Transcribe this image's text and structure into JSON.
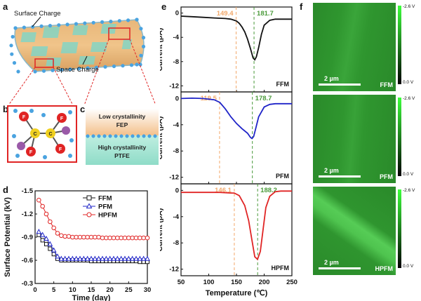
{
  "panel_labels": {
    "a": "a",
    "b": "b",
    "c": "c",
    "d": "d",
    "e": "e",
    "f": "f"
  },
  "panel_a": {
    "surface_label": "Surface Charge",
    "space_label": "Space Charge"
  },
  "panel_b": {
    "f_atom": "F",
    "c_atom": "C"
  },
  "panel_c": {
    "top_line1": "Low crystallinity",
    "top_line2": "FEP",
    "bottom_line1": "High crystallinity",
    "bottom_line2": "PTFE"
  },
  "colors": {
    "ffm": "#111111",
    "pfm": "#1f24c8",
    "hpfm": "#e02424",
    "orange_marker": "#f2a86a",
    "green_marker": "#4a9a3a",
    "afm_green": "#2f8f2f"
  },
  "chart_data": [
    {
      "type": "scatter",
      "panel": "d",
      "xlabel": "Time (day)",
      "ylabel": "Surface Potential (kV)",
      "xlim": [
        0,
        30
      ],
      "ylim": [
        -0.3,
        -1.5
      ],
      "xticks": [
        0,
        5,
        10,
        15,
        20,
        25,
        30
      ],
      "yticks": [
        -1.5,
        -1.2,
        -0.9,
        -0.6,
        -0.3
      ],
      "ytick_labels": [
        "-1.5",
        "-1.2",
        "-0.9",
        "-0.6",
        "-0.3"
      ],
      "legend_position": "top-right",
      "series": [
        {
          "name": "FFM",
          "marker": "square",
          "x": [
            1,
            2,
            3,
            4,
            5,
            6,
            7,
            8,
            9,
            10,
            11,
            12,
            13,
            14,
            15,
            16,
            17,
            18,
            19,
            20,
            21,
            22,
            23,
            24,
            25,
            26,
            27,
            28,
            29,
            30
          ],
          "values": [
            -0.93,
            -0.86,
            -0.81,
            -0.75,
            -0.68,
            -0.62,
            -0.6,
            -0.6,
            -0.6,
            -0.6,
            -0.6,
            -0.6,
            -0.6,
            -0.6,
            -0.59,
            -0.59,
            -0.59,
            -0.59,
            -0.59,
            -0.59,
            -0.59,
            -0.59,
            -0.59,
            -0.59,
            -0.59,
            -0.59,
            -0.59,
            -0.58,
            -0.58,
            -0.58
          ]
        },
        {
          "name": "PFM",
          "marker": "triangle",
          "x": [
            1,
            2,
            3,
            4,
            5,
            6,
            7,
            8,
            9,
            10,
            11,
            12,
            13,
            14,
            15,
            16,
            17,
            18,
            19,
            20,
            21,
            22,
            23,
            24,
            25,
            26,
            27,
            28,
            29,
            30
          ],
          "values": [
            -0.97,
            -0.93,
            -0.88,
            -0.81,
            -0.73,
            -0.65,
            -0.62,
            -0.62,
            -0.62,
            -0.62,
            -0.62,
            -0.62,
            -0.62,
            -0.62,
            -0.62,
            -0.62,
            -0.62,
            -0.62,
            -0.62,
            -0.62,
            -0.62,
            -0.62,
            -0.62,
            -0.62,
            -0.62,
            -0.62,
            -0.62,
            -0.62,
            -0.62,
            -0.62
          ]
        },
        {
          "name": "HPFM",
          "marker": "circle",
          "x": [
            1,
            2,
            3,
            4,
            5,
            6,
            7,
            8,
            9,
            10,
            11,
            12,
            13,
            14,
            15,
            16,
            17,
            18,
            19,
            20,
            21,
            22,
            23,
            24,
            25,
            26,
            27,
            28,
            29,
            30
          ],
          "values": [
            -1.38,
            -1.3,
            -1.2,
            -1.1,
            -1.02,
            -0.95,
            -0.92,
            -0.91,
            -0.91,
            -0.9,
            -0.9,
            -0.9,
            -0.9,
            -0.9,
            -0.9,
            -0.9,
            -0.9,
            -0.89,
            -0.89,
            -0.89,
            -0.89,
            -0.89,
            -0.89,
            -0.89,
            -0.89,
            -0.89,
            -0.89,
            -0.89,
            -0.89,
            -0.89
          ]
        }
      ]
    },
    {
      "type": "line",
      "panel": "e",
      "xlabel": "Temperature (℃)",
      "ylabel": "Current (pA)",
      "xlim": [
        50,
        250
      ],
      "xticks": [
        50,
        100,
        150,
        200,
        250
      ],
      "ylim": [
        -13,
        1
      ],
      "yticks": [
        0,
        -4,
        -8,
        -12
      ],
      "subplots": [
        {
          "name": "FFM",
          "marker_orange": "149.4",
          "marker_green": "181.7",
          "x": [
            50,
            70,
            90,
            110,
            130,
            140,
            150,
            155,
            160,
            165,
            170,
            175,
            180,
            183,
            186,
            190,
            195,
            200,
            210,
            220,
            230,
            240,
            250
          ],
          "values": [
            -0.5,
            -0.6,
            -0.7,
            -0.8,
            -0.9,
            -1.0,
            -1.3,
            -1.7,
            -2.3,
            -3.1,
            -4.3,
            -5.8,
            -7.4,
            -7.7,
            -7.2,
            -5.7,
            -3.5,
            -2.0,
            -1.2,
            -1.0,
            -1.0,
            -1.0,
            -1.0
          ]
        },
        {
          "name": "PFM",
          "marker_orange": "119.5",
          "marker_green": "178.7",
          "x": [
            50,
            70,
            90,
            110,
            120,
            130,
            140,
            150,
            160,
            170,
            175,
            178,
            181,
            184,
            190,
            200,
            210,
            220,
            230,
            240,
            250
          ],
          "values": [
            0,
            0.05,
            0,
            -0.2,
            -0.6,
            -1.6,
            -2.8,
            -3.8,
            -4.6,
            -5.3,
            -5.9,
            -6.1,
            -5.8,
            -4.8,
            -2.8,
            -1.3,
            -0.9,
            -0.8,
            -0.8,
            -0.8,
            -0.8
          ]
        },
        {
          "name": "HPFM",
          "marker_orange": "146.1",
          "marker_green": "188.2",
          "x": [
            50,
            80,
            100,
            120,
            140,
            146,
            155,
            165,
            172,
            178,
            183,
            188,
            193,
            198,
            203,
            210,
            220,
            230,
            240,
            250
          ],
          "values": [
            -0.3,
            -0.3,
            -0.3,
            -0.3,
            -0.4,
            -0.4,
            -0.8,
            -2.3,
            -4.6,
            -7.6,
            -10.1,
            -10.5,
            -9.3,
            -6.0,
            -2.6,
            -0.9,
            -0.2,
            -0.1,
            -0.1,
            -0.1
          ]
        }
      ]
    }
  ],
  "panel_f": {
    "images": [
      {
        "label": "FFM",
        "scale_bar": "2 µm",
        "cbar_top": "-2.6 V",
        "cbar_bottom": "0.0 V"
      },
      {
        "label": "PFM",
        "scale_bar": "2 µm",
        "cbar_top": "-2.6 V",
        "cbar_bottom": "0.0 V"
      },
      {
        "label": "HPFM",
        "scale_bar": "2 µm",
        "cbar_top": "-2.6 V",
        "cbar_bottom": "0.0 V"
      }
    ]
  }
}
